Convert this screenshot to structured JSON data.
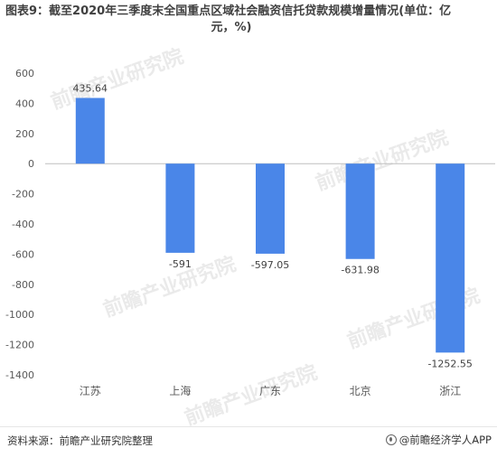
{
  "title_line1": "图表9：截至2020年三季度末全国重点区域社会融资信托贷款规模增量情况(单位：亿",
  "title_line2": "元，%)",
  "source": "资料来源：前瞻产业研究院整理",
  "credit": "@前瞻经济学人APP",
  "watermark_text": "前瞻产业研究院",
  "colors": {
    "bar": "#4a86e8",
    "axis": "#bfbfbf",
    "tick_text": "#595959",
    "label_text": "#404040",
    "watermark": "#d9d9d9"
  },
  "chart_data": {
    "type": "bar",
    "categories": [
      "江苏",
      "上海",
      "广东",
      "北京",
      "浙江"
    ],
    "values": [
      435.64,
      -591,
      -597.05,
      -631.98,
      -1252.55
    ],
    "data_labels": [
      "435.64",
      "-591",
      "-597.05",
      "-631.98",
      "-1252.55"
    ],
    "ylim": [
      -1400,
      600
    ],
    "yticks": [
      600,
      400,
      200,
      0,
      -200,
      -400,
      -600,
      -800,
      -1000,
      -1200,
      -1400
    ],
    "xlabel": "",
    "ylabel": "",
    "grid": false,
    "legend": "none"
  }
}
